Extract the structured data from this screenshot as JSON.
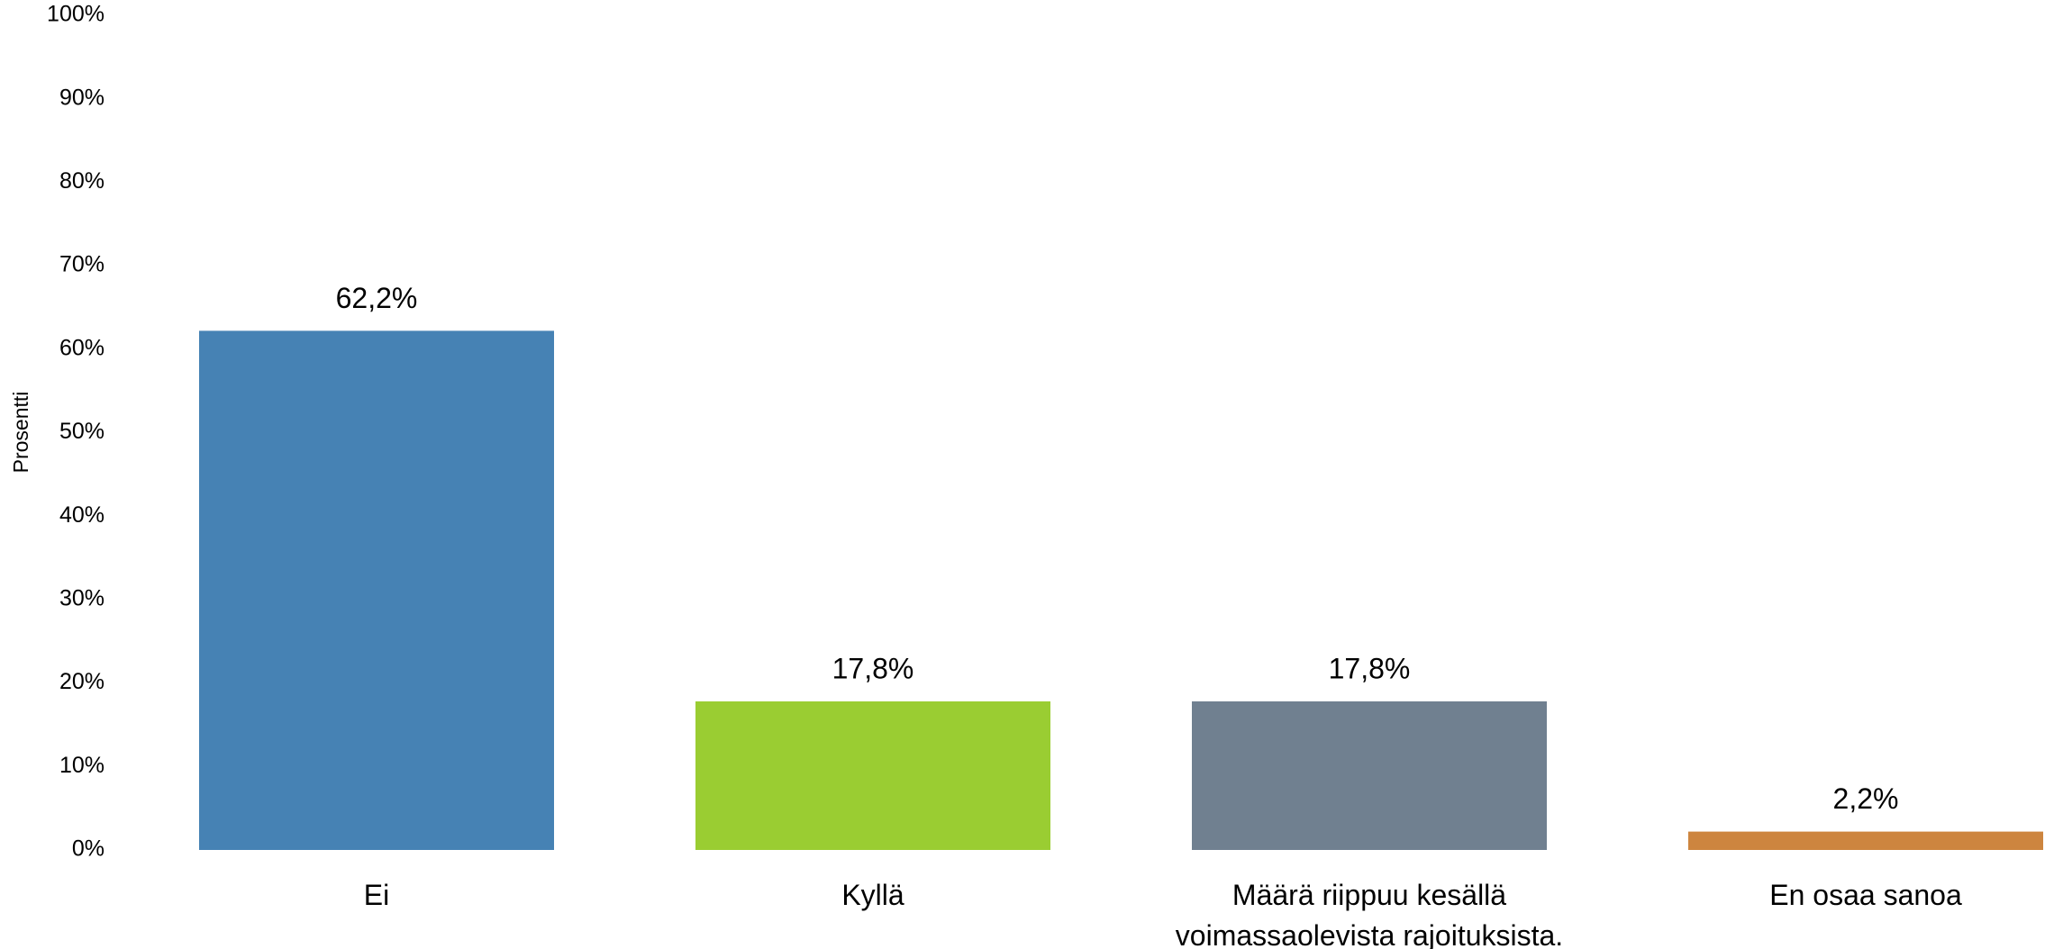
{
  "chart_data": {
    "type": "bar",
    "y_label": "Prosentti",
    "categories": [
      "Ei",
      "Kyllä",
      "Määrä riippuu kesällä voimassaolevista rajoituksista.",
      "En osaa sanoa"
    ],
    "values": [
      62.2,
      17.8,
      17.8,
      2.2
    ],
    "value_labels": [
      "62,2%",
      "17,8%",
      "17,8%",
      "2,2%"
    ],
    "colors": [
      "#4682b4",
      "#9acd32",
      "#708090",
      "#cd853f"
    ],
    "ylim": [
      0,
      100
    ],
    "yticks": [
      {
        "value": 0,
        "label": "0%"
      },
      {
        "value": 10,
        "label": "10%"
      },
      {
        "value": 20,
        "label": "20%"
      },
      {
        "value": 30,
        "label": "30%"
      },
      {
        "value": 40,
        "label": "40%"
      },
      {
        "value": 50,
        "label": "50%"
      },
      {
        "value": 60,
        "label": "60%"
      },
      {
        "value": 70,
        "label": "70%"
      },
      {
        "value": 80,
        "label": "80%"
      },
      {
        "value": 90,
        "label": "90%"
      },
      {
        "value": 100,
        "label": "100%"
      }
    ],
    "grid": false
  }
}
